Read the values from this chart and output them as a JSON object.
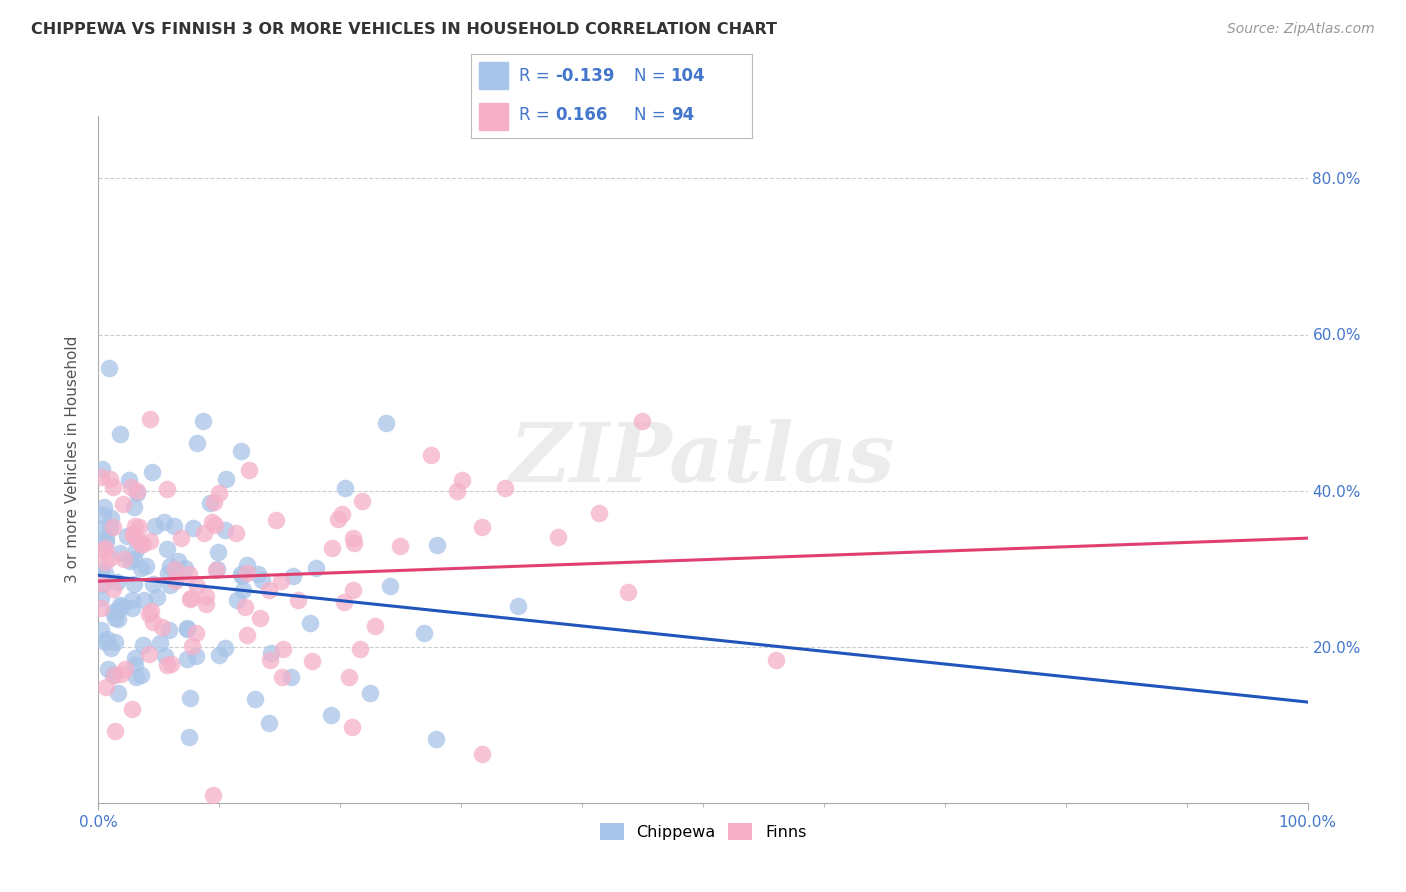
{
  "title": "CHIPPEWA VS FINNISH 3 OR MORE VEHICLES IN HOUSEHOLD CORRELATION CHART",
  "source": "Source: ZipAtlas.com",
  "ylabel": "3 or more Vehicles in Household",
  "xlim": [
    0.0,
    1.0
  ],
  "ylim": [
    0.0,
    0.88
  ],
  "xtick_positions": [
    0.0,
    1.0
  ],
  "xtick_labels": [
    "0.0%",
    "100.0%"
  ],
  "ytick_positions": [
    0.2,
    0.4,
    0.6,
    0.8
  ],
  "ytick_labels": [
    "20.0%",
    "40.0%",
    "60.0%",
    "80.0%"
  ],
  "chippewa_color": "#a8c4e8",
  "finns_color": "#f5b0c8",
  "chippewa_line_color": "#2255bb",
  "finns_line_color": "#e04070",
  "legend_R_chippewa": "-0.139",
  "legend_N_chippewa": "104",
  "legend_R_finns": "0.166",
  "legend_N_finns": "94",
  "watermark": "ZIPatlas",
  "grid_color": "#cccccc",
  "background_color": "#ffffff",
  "chippewa_seed": 42,
  "finns_seed": 99,
  "chippewa_R": -0.139,
  "finns_R": 0.166,
  "chippewa_N": 104,
  "finns_N": 94,
  "tick_color": "#4477cc"
}
